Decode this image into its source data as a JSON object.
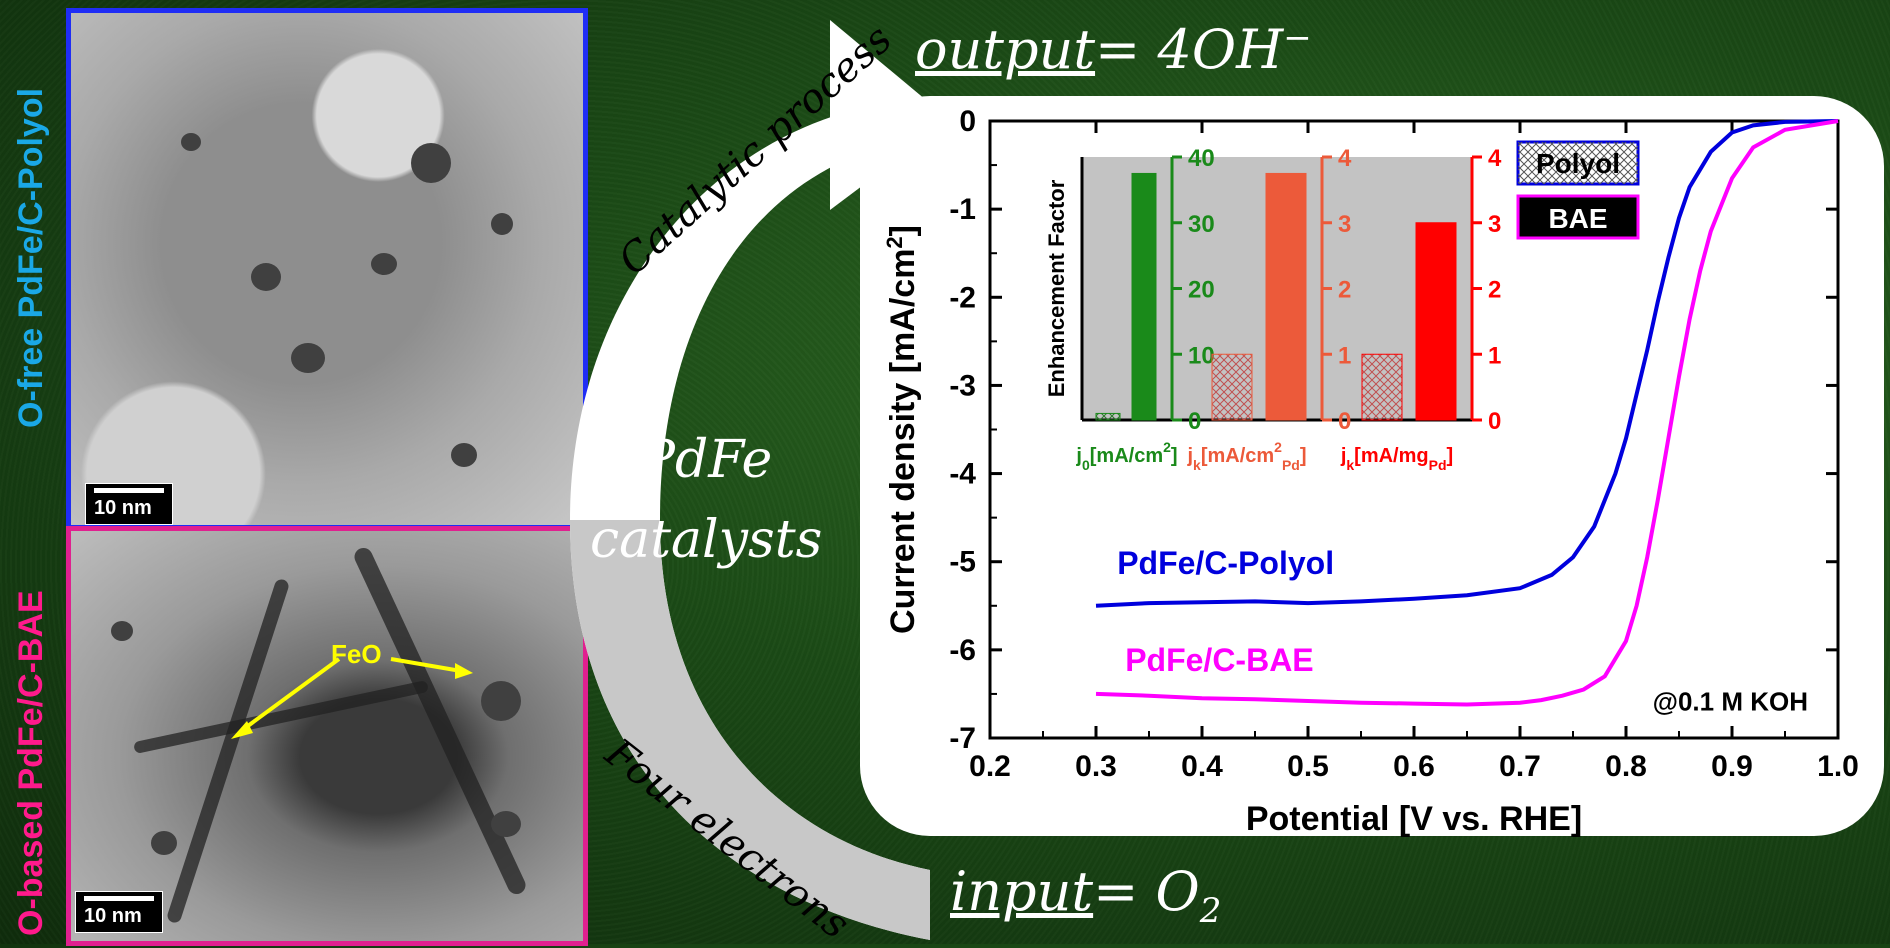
{
  "sidebar": {
    "top_label": "O-free PdFe/C-Polyol",
    "bottom_label": "O-based PdFe/C-BAE",
    "top_color": "#1aa8e6",
    "bottom_color": "#ff1a8c"
  },
  "tem_images": {
    "top": {
      "scale": "10 nm"
    },
    "bottom": {
      "scale": "10 nm",
      "annotation": "FeO",
      "annotation_color": "#ffff00"
    }
  },
  "scheme": {
    "output_label": "output",
    "output_value": "= 4OH",
    "output_superscript": "−",
    "input_label": "input",
    "input_value": "= O",
    "input_subscript": "2",
    "catalytic_process": "Catalytic process",
    "four_electrons": "Four electrons",
    "catalyst_line1": "PdFe",
    "catalyst_line2": "catalysts"
  },
  "chart_data": [
    {
      "type": "line",
      "xlabel": "Potential [V vs. RHE]",
      "ylabel": "Current density [mA/cm",
      "ylabel_superscript": "2",
      "ylabel_close": "]",
      "xlim": [
        0.2,
        1.0
      ],
      "ylim": [
        -7,
        0
      ],
      "x_ticks": [
        "0.2",
        "0.3",
        "0.4",
        "0.5",
        "0.6",
        "0.7",
        "0.8",
        "0.9",
        "1.0"
      ],
      "y_ticks": [
        "0",
        "-1",
        "-2",
        "-3",
        "-4",
        "-5",
        "-6",
        "-7"
      ],
      "annotation": "@0.1 M KOH",
      "series": [
        {
          "name": "PdFe/C-Polyol",
          "color": "#0000dd",
          "x": [
            0.3,
            0.35,
            0.4,
            0.45,
            0.5,
            0.55,
            0.6,
            0.65,
            0.7,
            0.73,
            0.75,
            0.77,
            0.79,
            0.8,
            0.81,
            0.82,
            0.83,
            0.84,
            0.85,
            0.86,
            0.88,
            0.9,
            0.92,
            0.95,
            1.0
          ],
          "y": [
            -5.5,
            -5.47,
            -5.46,
            -5.45,
            -5.47,
            -5.45,
            -5.42,
            -5.38,
            -5.3,
            -5.15,
            -4.95,
            -4.6,
            -4.0,
            -3.6,
            -3.1,
            -2.6,
            -2.05,
            -1.55,
            -1.1,
            -0.75,
            -0.35,
            -0.13,
            -0.05,
            -0.01,
            0.0
          ]
        },
        {
          "name": "PdFe/C-BAE",
          "color": "#ff00ff",
          "x": [
            0.3,
            0.35,
            0.4,
            0.45,
            0.5,
            0.55,
            0.6,
            0.65,
            0.7,
            0.72,
            0.74,
            0.76,
            0.78,
            0.8,
            0.81,
            0.82,
            0.83,
            0.84,
            0.85,
            0.86,
            0.87,
            0.88,
            0.9,
            0.92,
            0.95,
            1.0
          ],
          "y": [
            -6.5,
            -6.52,
            -6.55,
            -6.56,
            -6.58,
            -6.6,
            -6.61,
            -6.62,
            -6.6,
            -6.57,
            -6.52,
            -6.45,
            -6.3,
            -5.9,
            -5.5,
            -4.95,
            -4.3,
            -3.6,
            -2.9,
            -2.25,
            -1.7,
            -1.25,
            -0.65,
            -0.3,
            -0.1,
            0.0
          ]
        }
      ],
      "legend": [
        "Polyol",
        "BAE"
      ]
    },
    {
      "type": "bar",
      "ylabel": "Enhancement Factor",
      "groups": [
        {
          "axis_label": "j",
          "axis_sub": "0",
          "axis_unit": "[mA/cm",
          "axis_sup": "2",
          "axis_close": "]",
          "color": "#1a8a1a",
          "ylim": [
            0,
            40
          ],
          "ticks": [
            "0",
            "10",
            "20",
            "30",
            "40"
          ],
          "polyol": 1,
          "bae": 37.5
        },
        {
          "axis_label": "j",
          "axis_sub": "k",
          "axis_unit": "[mA/cm",
          "axis_sup": "2",
          "axis_sub2": "Pd",
          "axis_close": "]",
          "color": "#ec5a3a",
          "ylim": [
            0,
            4
          ],
          "ticks": [
            "0",
            "1",
            "2",
            "3",
            "4"
          ],
          "polyol": 1,
          "bae": 3.75
        },
        {
          "axis_label": "j",
          "axis_sub": "k",
          "axis_unit": "[mA/mg",
          "axis_sub2": "Pd",
          "axis_close": "]",
          "color": "#ff0000",
          "ylim": [
            0,
            4
          ],
          "ticks": [
            "0",
            "1",
            "2",
            "3",
            "4"
          ],
          "polyol": 1,
          "bae": 3.0
        }
      ]
    }
  ]
}
